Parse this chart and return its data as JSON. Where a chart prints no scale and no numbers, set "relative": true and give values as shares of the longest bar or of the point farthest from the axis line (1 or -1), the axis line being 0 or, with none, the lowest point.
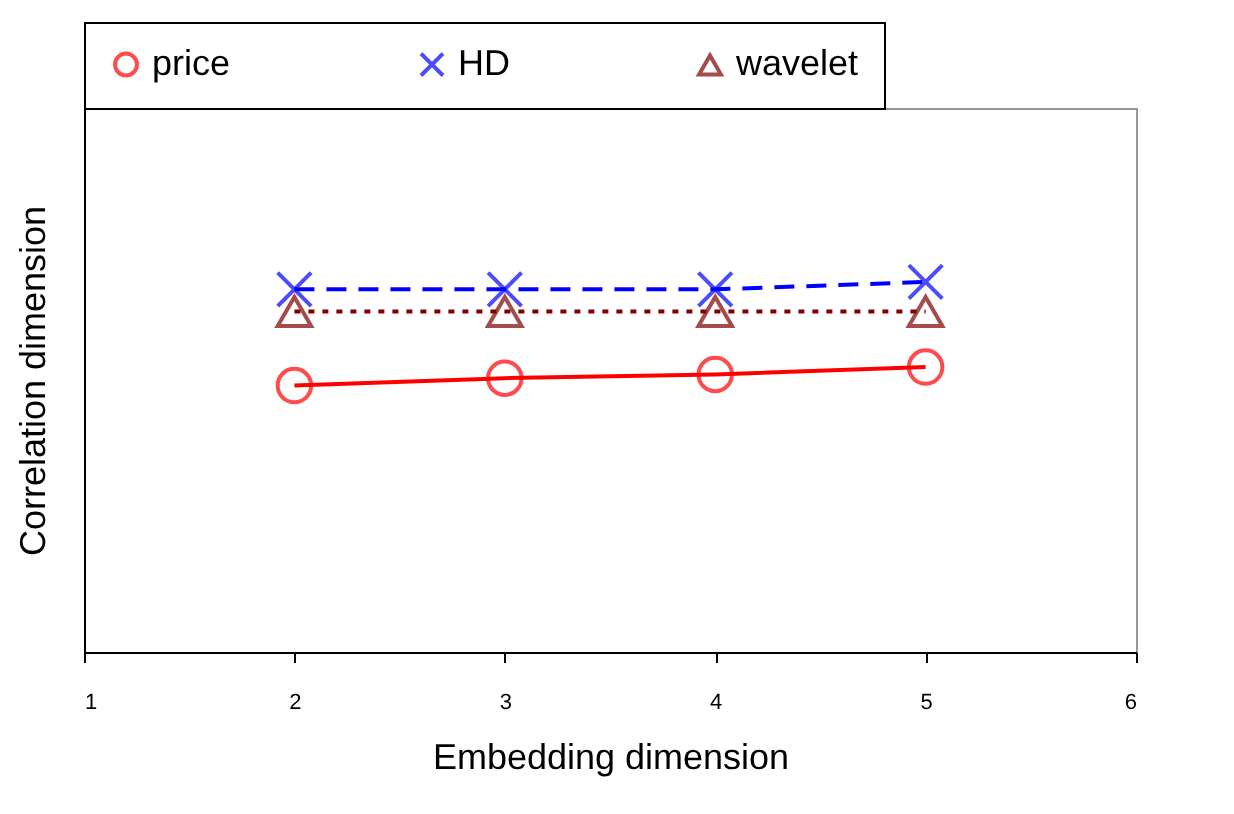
{
  "chart_data": {
    "type": "line",
    "xlabel": "Embedding dimension",
    "ylabel": "Correlation dimension",
    "relative": true,
    "x": [
      2,
      3,
      4,
      5
    ],
    "xlim": [
      1,
      6
    ],
    "xticks": [
      1,
      2,
      3,
      4,
      5,
      6
    ],
    "legend": "top",
    "grid": false,
    "series": [
      {
        "name": "price",
        "color": "#ff0000",
        "marker": "circle",
        "line_style": "solid",
        "values": [
          0.72,
          0.74,
          0.75,
          0.77
        ]
      },
      {
        "name": "HD",
        "color": "#0000ff",
        "marker": "cross",
        "line_style": "dashed",
        "values": [
          0.98,
          0.98,
          0.98,
          1
        ]
      },
      {
        "name": "wavelet",
        "color": "#800000",
        "marker": "triangle",
        "line_style": "dotted",
        "values": [
          0.92,
          0.92,
          0.92,
          0.92
        ]
      }
    ]
  }
}
